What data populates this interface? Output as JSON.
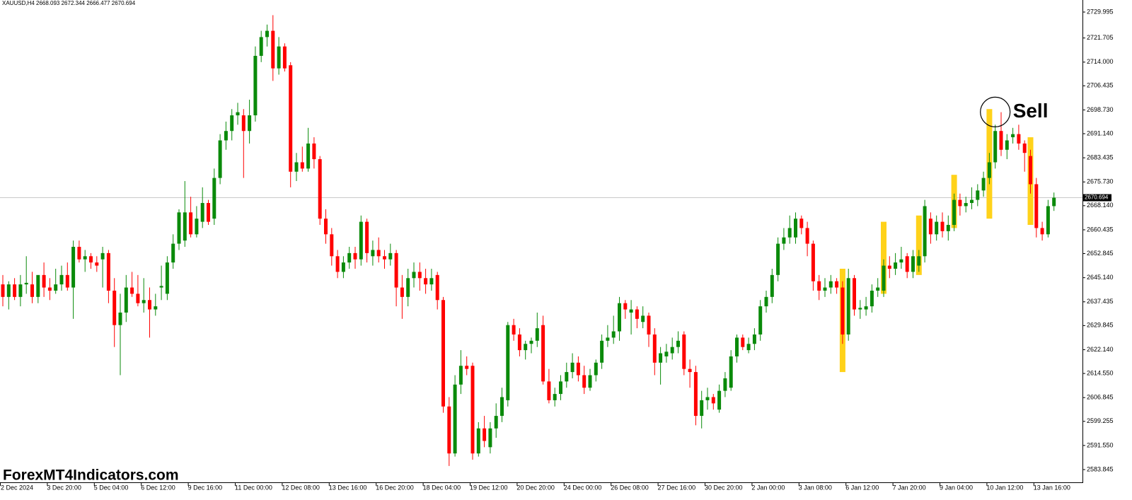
{
  "chart_data": {
    "type": "candlestick",
    "title": "XAUUSD,H4  2668.093 2672.344 2666.477 2670.694",
    "watermark": "ForexMT4Indicators.com",
    "up_color": "#0a8a0a",
    "down_color": "#ff0000",
    "signal_color": "#ffd21a",
    "ylim": [
      2579.78,
      2733.84
    ],
    "yticks": [
      2729.995,
      2721.705,
      {
        "value": 2714,
        "label": "2714.000"
      },
      2706.435,
      {
        "value": 2698.73,
        "label": "2698.730"
      },
      {
        "value": 2691.14,
        "label": "2691.140"
      },
      2683.435,
      {
        "value": 2675.73,
        "label": "2675.730"
      },
      {
        "value": 2668.14,
        "label": "2668.140"
      },
      2660.435,
      2652.845,
      {
        "value": 2645.14,
        "label": "2645.140"
      },
      2637.435,
      2629.845,
      {
        "value": 2622.14,
        "label": "2622.140"
      },
      {
        "value": 2614.55,
        "label": "2614.550"
      },
      2606.845,
      2599.255,
      {
        "value": 2591.55,
        "label": "2591.550"
      },
      2583.845
    ],
    "categories": [
      "2 Dec 2024",
      null,
      null,
      null,
      null,
      null,
      null,
      null,
      "3 Dec 20:00",
      null,
      null,
      null,
      null,
      null,
      null,
      null,
      "5 Dec 04:00",
      null,
      null,
      null,
      null,
      null,
      null,
      null,
      "6 Dec 12:00",
      null,
      null,
      null,
      null,
      null,
      null,
      null,
      "9 Dec 16:00",
      null,
      null,
      null,
      null,
      null,
      null,
      null,
      "11 Dec 00:00",
      null,
      null,
      null,
      null,
      null,
      null,
      null,
      "12 Dec 08:00",
      null,
      null,
      null,
      null,
      null,
      null,
      null,
      "13 Dec 16:00",
      null,
      null,
      null,
      null,
      null,
      null,
      null,
      "16 Dec 20:00",
      null,
      null,
      null,
      null,
      null,
      null,
      null,
      "18 Dec 04:00",
      null,
      null,
      null,
      null,
      null,
      null,
      null,
      "19 Dec 12:00",
      null,
      null,
      null,
      null,
      null,
      null,
      null,
      "20 Dec 20:00",
      null,
      null,
      null,
      null,
      null,
      null,
      null,
      "24 Dec 00:00",
      null,
      null,
      null,
      null,
      null,
      null,
      null,
      "26 Dec 08:00",
      null,
      null,
      null,
      null,
      null,
      null,
      null,
      "27 Dec 16:00",
      null,
      null,
      null,
      null,
      null,
      null,
      null,
      "30 Dec 20:00",
      null,
      null,
      null,
      null,
      null,
      null,
      null,
      "2 Jan 00:00",
      null,
      null,
      null,
      null,
      null,
      null,
      null,
      "3 Jan 08:00",
      null,
      null,
      null,
      null,
      null,
      null,
      null,
      "6 Jan 12:00",
      null,
      null,
      null,
      null,
      null,
      null,
      null,
      "7 Jan 20:00",
      null,
      null,
      null,
      null,
      null,
      null,
      null,
      "9 Jan 04:00",
      null,
      null,
      null,
      null,
      null,
      null,
      null,
      "10 Jan 12:00",
      null,
      null,
      null,
      null,
      null,
      null,
      null,
      "13 Jan 16:00",
      null,
      null,
      null
    ],
    "candles": [
      [
        2643,
        2646,
        2636,
        2639
      ],
      [
        2639,
        2644,
        2635,
        2643
      ],
      [
        2643,
        2645,
        2638,
        2639
      ],
      [
        2639,
        2646,
        2636,
        2643
      ],
      [
        2643,
        2652,
        2640,
        2643.5
      ],
      [
        2643,
        2647,
        2637,
        2639
      ],
      [
        2639,
        2645,
        2637,
        2646
      ],
      [
        2646,
        2650,
        2639,
        2642
      ],
      [
        2642,
        2645,
        2638,
        2641
      ],
      [
        2641,
        2648,
        2640,
        2643
      ],
      [
        2643,
        2649,
        2641,
        2646
      ],
      [
        2646,
        2650,
        2641,
        2642
      ],
      [
        2642,
        2657,
        2632,
        2655
      ],
      [
        2655,
        2657,
        2650,
        2651
      ],
      [
        2651,
        2654,
        2647,
        2652
      ],
      [
        2652,
        2653,
        2648,
        2650
      ],
      [
        2650,
        2652,
        2647,
        2649
      ],
      [
        2651,
        2655,
        2642,
        2653
      ],
      [
        2653,
        2654,
        2637,
        2641
      ],
      [
        2641,
        2645,
        2623,
        2630
      ],
      [
        2630,
        2640,
        2614,
        2634
      ],
      [
        2634,
        2646,
        2631,
        2642
      ],
      [
        2642,
        2647,
        2639,
        2640
      ],
      [
        2640,
        2646,
        2636,
        2637
      ],
      [
        2637,
        2645,
        2634,
        2638
      ],
      [
        2638,
        2642,
        2626,
        2635
      ],
      [
        2635,
        2640,
        2633,
        2636
      ],
      [
        2642,
        2649,
        2638,
        2642.5
      ],
      [
        2640,
        2652,
        2638,
        2650
      ],
      [
        2650,
        2659,
        2648,
        2656
      ],
      [
        2656,
        2667,
        2654,
        2666
      ],
      [
        2657,
        2676,
        2655,
        2666
      ],
      [
        2666,
        2671,
        2658,
        2659
      ],
      [
        2659,
        2668,
        2658,
        2664
      ],
      [
        2663,
        2674,
        2661,
        2669
      ],
      [
        2669,
        2670,
        2662,
        2663
      ],
      [
        2664,
        2680,
        2662,
        2677
      ],
      [
        2677,
        2691,
        2675,
        2689
      ],
      [
        2689,
        2695,
        2686,
        2692
      ],
      [
        2692,
        2699,
        2689,
        2697
      ],
      [
        2697,
        2701,
        2694,
        2698
      ],
      [
        2697,
        2699,
        2677,
        2692
      ],
      [
        2692,
        2702,
        2688,
        2697
      ],
      [
        2697,
        2719,
        2695,
        2716
      ],
      [
        2716,
        2724,
        2714,
        2722
      ],
      [
        2722,
        2726,
        2719,
        2724
      ],
      [
        2724,
        2729,
        2708,
        2712
      ],
      [
        2712,
        2722,
        2710,
        2719
      ],
      [
        2719,
        2720,
        2711,
        2712
      ],
      [
        2713,
        2714,
        2674,
        2679
      ],
      [
        2679,
        2685,
        2676,
        2682
      ],
      [
        2682,
        2687,
        2679,
        2680
      ],
      [
        2680,
        2693,
        2679,
        2688
      ],
      [
        2688,
        2690,
        2680,
        2683
      ],
      [
        2683,
        2684,
        2662,
        2664
      ],
      [
        2664,
        2667,
        2656,
        2659
      ],
      [
        2659,
        2661,
        2649,
        2652
      ],
      [
        2652,
        2654,
        2645,
        2647
      ],
      [
        2647,
        2652,
        2645,
        2650
      ],
      [
        2650,
        2655,
        2648,
        2653
      ],
      [
        2653,
        2655,
        2648,
        2651
      ],
      [
        2651,
        2665,
        2649,
        2663
      ],
      [
        2663,
        2664,
        2650,
        2653
      ],
      [
        2652,
        2657,
        2649,
        2654
      ],
      [
        2654,
        2658,
        2650,
        2652
      ],
      [
        2652,
        2654,
        2648,
        2651
      ],
      [
        2651,
        2656,
        2649,
        2653
      ],
      [
        2653,
        2654,
        2636,
        2642
      ],
      [
        2642,
        2646,
        2632,
        2639
      ],
      [
        2639,
        2648,
        2636,
        2645
      ],
      [
        2645,
        2650,
        2642,
        2647
      ],
      [
        2647,
        2650,
        2641,
        2645
      ],
      [
        2645,
        2648,
        2640,
        2643
      ],
      [
        2643,
        2648,
        2641,
        2645
      ],
      [
        2646,
        2647,
        2635,
        2638
      ],
      [
        2638,
        2639,
        2602,
        2604
      ],
      [
        2604,
        2607,
        2585,
        2589
      ],
      [
        2589,
        2614,
        2588,
        2611
      ],
      [
        2611,
        2622,
        2608,
        2617
      ],
      [
        2617,
        2620,
        2614,
        2616
      ],
      [
        2617,
        2618,
        2587,
        2589
      ],
      [
        2589,
        2599,
        2588,
        2597
      ],
      [
        2597,
        2601,
        2591,
        2593
      ],
      [
        2591,
        2599,
        2589,
        2597
      ],
      [
        2597,
        2605,
        2594,
        2601
      ],
      [
        2601,
        2610,
        2599,
        2607
      ],
      [
        2606,
        2631,
        2604,
        2630
      ],
      [
        2630,
        2632,
        2625,
        2627
      ],
      [
        2627,
        2629,
        2620,
        2622
      ],
      [
        2622,
        2625,
        2619,
        2624
      ],
      [
        2624,
        2626,
        2621,
        2625
      ],
      [
        2625,
        2634,
        2623,
        2629
      ],
      [
        2630,
        2633,
        2611,
        2612
      ],
      [
        2612,
        2616,
        2605,
        2606
      ],
      [
        2606,
        2610,
        2604,
        2608
      ],
      [
        2608,
        2614,
        2606,
        2612
      ],
      [
        2612,
        2618,
        2610,
        2615
      ],
      [
        2615,
        2621,
        2613,
        2618
      ],
      [
        2618,
        2620,
        2612,
        2614
      ],
      [
        2614,
        2617,
        2608,
        2610
      ],
      [
        2610,
        2616,
        2609,
        2614
      ],
      [
        2614,
        2619,
        2612,
        2618
      ],
      [
        2618,
        2627,
        2616,
        2625
      ],
      [
        2625,
        2630,
        2623,
        2626
      ],
      [
        2626,
        2633,
        2624,
        2628
      ],
      [
        2628,
        2639,
        2625,
        2637
      ],
      [
        2637,
        2638,
        2632,
        2635
      ],
      [
        2634,
        2638,
        2627,
        2635
      ],
      [
        2635,
        2636,
        2629,
        2632
      ],
      [
        2631,
        2636,
        2629,
        2633
      ],
      [
        2633,
        2634,
        2623,
        2627
      ],
      [
        2627,
        2629,
        2614,
        2618
      ],
      [
        2618,
        2623,
        2611,
        2621
      ],
      [
        2620,
        2624,
        2618,
        2621.5
      ],
      [
        2621,
        2626,
        2619,
        2623
      ],
      [
        2623,
        2628,
        2621,
        2625
      ],
      [
        2627,
        2628,
        2614,
        2616
      ],
      [
        2616,
        2619,
        2610,
        2615
      ],
      [
        2615,
        2617,
        2598,
        2601
      ],
      [
        2601,
        2609,
        2597,
        2606
      ],
      [
        2606,
        2610,
        2603,
        2607
      ],
      [
        2607,
        2608,
        2603,
        2605
      ],
      [
        2603,
        2611,
        2602,
        2609
      ],
      [
        2609,
        2615,
        2607,
        2613
      ],
      [
        2610,
        2622,
        2609,
        2620
      ],
      [
        2620,
        2627,
        2618,
        2626
      ],
      [
        2626,
        2627,
        2622,
        2623
      ],
      [
        2622,
        2626,
        2621,
        2624
      ],
      [
        2624,
        2629,
        2622,
        2627
      ],
      [
        2627,
        2638,
        2625,
        2636
      ],
      [
        2636,
        2641,
        2634,
        2639
      ],
      [
        2639,
        2648,
        2637,
        2646
      ],
      [
        2646,
        2658,
        2644,
        2656
      ],
      [
        2656,
        2661,
        2654,
        2658
      ],
      [
        2658,
        2665,
        2656,
        2661
      ],
      [
        2658,
        2666,
        2656,
        2664
      ],
      [
        2664,
        2665,
        2659,
        2661
      ],
      [
        2661,
        2663,
        2652,
        2656
      ],
      [
        2656,
        2657,
        2641,
        2644
      ],
      [
        2644,
        2646,
        2638,
        2641
      ],
      [
        2641,
        2645,
        2639,
        2642
      ],
      [
        2642,
        2646,
        2640,
        2644
      ],
      [
        2644,
        2645,
        2640,
        2642
      ],
      [
        2642,
        2644,
        2624,
        2627
      ],
      [
        2627,
        2648,
        2625,
        2645
      ],
      [
        2645,
        2646,
        2633,
        2635
      ],
      [
        2635,
        2638,
        2632,
        2635.5
      ],
      [
        2635,
        2639,
        2633,
        2636
      ],
      [
        2636,
        2643,
        2634,
        2641
      ],
      [
        2641,
        2645,
        2639,
        2642
      ],
      [
        2641,
        2651,
        2639,
        2649
      ],
      [
        2649,
        2652,
        2645,
        2648
      ],
      [
        2648,
        2653,
        2646,
        2650
      ],
      [
        2650,
        2655,
        2648,
        2651
      ],
      [
        2652,
        2653,
        2645,
        2647
      ],
      [
        2647,
        2654,
        2645,
        2652
      ],
      [
        2649,
        2654,
        2647,
        2652
      ],
      [
        2652,
        2670,
        2650,
        2668
      ],
      [
        2664,
        2666,
        2656,
        2659
      ],
      [
        2659,
        2665,
        2657,
        2663
      ],
      [
        2663,
        2666,
        2658,
        2660
      ],
      [
        2660,
        2665,
        2657,
        2662
      ],
      [
        2662,
        2672,
        2660,
        2670
      ],
      [
        2670,
        2672,
        2665,
        2668
      ],
      [
        2668,
        2671,
        2666,
        2669
      ],
      [
        2669,
        2674,
        2667,
        2670
      ],
      [
        2670,
        2675,
        2668,
        2673
      ],
      [
        2673,
        2679,
        2671,
        2677
      ],
      [
        2677,
        2685,
        2675,
        2682
      ],
      [
        2682,
        2694,
        2680,
        2692
      ],
      [
        2692,
        2698,
        2684,
        2686
      ],
      [
        2686,
        2691,
        2683,
        2689
      ],
      [
        2690,
        2693,
        2688,
        2691
      ],
      [
        2691,
        2694,
        2686,
        2688
      ],
      [
        2688,
        2689,
        2679,
        2685
      ],
      [
        2684,
        2686,
        2672,
        2675
      ],
      [
        2675,
        2677,
        2658,
        2661
      ],
      [
        2661,
        2663,
        2657,
        2659
      ],
      [
        2659,
        2670,
        2658,
        2668
      ],
      [
        2668,
        2672.344,
        2666.477,
        2670.694
      ]
    ],
    "signals": [
      {
        "index": 143,
        "top": 2648,
        "bottom": 2615
      },
      {
        "index": 150,
        "top": 2663,
        "bottom": 2640
      },
      {
        "index": 156,
        "top": 2665,
        "bottom": 2646
      },
      {
        "index": 162,
        "top": 2678,
        "bottom": 2661
      },
      {
        "index": 168,
        "top": 2699,
        "bottom": 2664
      },
      {
        "index": 175,
        "top": 2690,
        "bottom": 2662
      }
    ],
    "annotations": [
      {
        "text": "Sell",
        "index": 169
      }
    ]
  }
}
